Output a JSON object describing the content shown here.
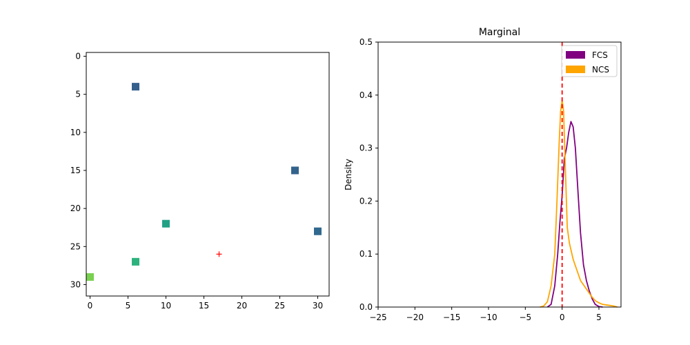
{
  "chart_data": [
    {
      "type": "scatter",
      "title": "",
      "xlabel": "",
      "ylabel": "",
      "xlim": [
        -0.5,
        31.5
      ],
      "ylim": [
        31.5,
        -0.5
      ],
      "y_inverted": true,
      "xticks": [
        0,
        5,
        10,
        15,
        20,
        25,
        30
      ],
      "yticks": [
        0,
        5,
        10,
        15,
        20,
        25,
        30
      ],
      "grid": false,
      "points": [
        {
          "x": 6,
          "y": 4,
          "color": "#355f8d",
          "marker": "square"
        },
        {
          "x": 27,
          "y": 15,
          "color": "#33638d",
          "marker": "square"
        },
        {
          "x": 30,
          "y": 23,
          "color": "#31688e",
          "marker": "square"
        },
        {
          "x": 10,
          "y": 22,
          "color": "#22a185",
          "marker": "square"
        },
        {
          "x": 6,
          "y": 27,
          "color": "#2db27d",
          "marker": "square"
        },
        {
          "x": 0,
          "y": 29,
          "color": "#7ad151",
          "marker": "square"
        },
        {
          "x": 17,
          "y": 26,
          "color": "#ff0000",
          "marker": "plus"
        }
      ]
    },
    {
      "type": "line",
      "title": "Marginal",
      "xlabel": "",
      "ylabel": "Density",
      "xlim": [
        -25,
        8
      ],
      "ylim": [
        0,
        0.5
      ],
      "xticks": [
        -25,
        -20,
        -15,
        -10,
        -5,
        0,
        5
      ],
      "xtick_labels": [
        "−25",
        "−20",
        "−15",
        "−10",
        "−5",
        "0",
        "5"
      ],
      "yticks": [
        0.0,
        0.1,
        0.2,
        0.3,
        0.4,
        0.5
      ],
      "ytick_labels": [
        "0.0",
        "0.1",
        "0.2",
        "0.3",
        "0.4",
        "0.5"
      ],
      "grid": false,
      "legend_position": "top-right",
      "vline": {
        "x": 0,
        "color": "#ff0000",
        "style": "dashed"
      },
      "series": [
        {
          "name": "FCS",
          "color": "#800080",
          "x": [
            -2.0,
            -1.5,
            -1.0,
            -0.6,
            -0.3,
            0.0,
            0.3,
            0.6,
            0.9,
            1.2,
            1.5,
            1.8,
            2.1,
            2.5,
            2.9,
            3.3,
            3.7,
            4.1,
            4.5,
            5.0,
            5.5
          ],
          "y": [
            0.0,
            0.005,
            0.04,
            0.1,
            0.16,
            0.21,
            0.28,
            0.3,
            0.33,
            0.35,
            0.34,
            0.3,
            0.23,
            0.14,
            0.08,
            0.05,
            0.03,
            0.015,
            0.005,
            0.001,
            0.0
          ]
        },
        {
          "name": "NCS",
          "color": "#ffa500",
          "x": [
            -3.0,
            -2.5,
            -2.0,
            -1.5,
            -1.0,
            -0.7,
            -0.4,
            -0.2,
            0.0,
            0.2,
            0.4,
            0.7,
            1.0,
            1.5,
            2.0,
            2.5,
            3.0,
            3.5,
            4.0,
            4.5,
            5.0,
            5.5,
            6.0,
            6.5,
            7.0,
            7.5
          ],
          "y": [
            0.0,
            0.002,
            0.01,
            0.04,
            0.1,
            0.2,
            0.31,
            0.37,
            0.39,
            0.37,
            0.28,
            0.15,
            0.12,
            0.09,
            0.07,
            0.05,
            0.04,
            0.03,
            0.02,
            0.012,
            0.008,
            0.005,
            0.004,
            0.003,
            0.002,
            0.0
          ]
        }
      ]
    }
  ]
}
